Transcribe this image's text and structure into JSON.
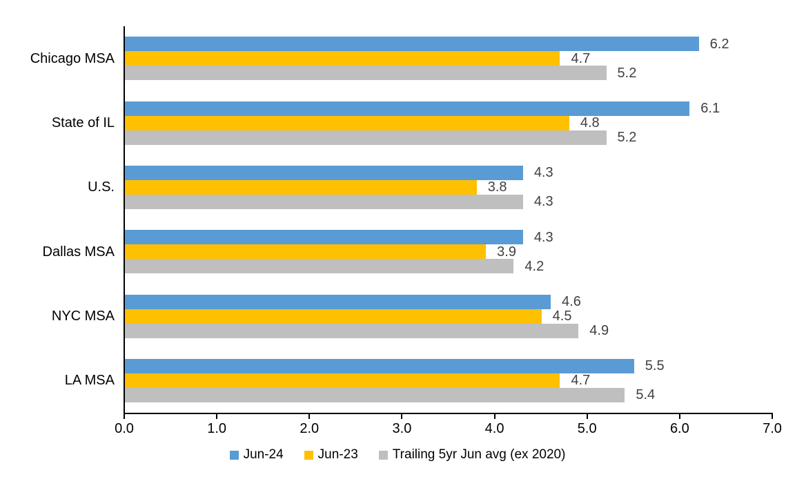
{
  "chart_data": {
    "type": "bar",
    "orientation": "horizontal",
    "title": "",
    "xlabel": "",
    "ylabel": "",
    "xlim": [
      0,
      7
    ],
    "x_ticks": [
      "0.0",
      "1.0",
      "2.0",
      "3.0",
      "4.0",
      "5.0",
      "6.0",
      "7.0"
    ],
    "grid": false,
    "legend_position": "bottom",
    "categories": [
      "Chicago MSA",
      "State of IL",
      "U.S.",
      "Dallas MSA",
      "NYC MSA",
      "LA MSA"
    ],
    "series": [
      {
        "name": "Jun-24",
        "color": "#5B9BD5",
        "values": [
          6.2,
          6.1,
          4.3,
          4.3,
          4.6,
          5.5
        ]
      },
      {
        "name": "Jun-23",
        "color": "#FFC000",
        "values": [
          4.7,
          4.8,
          3.8,
          3.9,
          4.5,
          4.7
        ]
      },
      {
        "name": "Trailing 5yr Jun avg (ex 2020)",
        "color": "#BFBFBF",
        "values": [
          5.2,
          5.2,
          4.3,
          4.2,
          4.9,
          5.4
        ]
      }
    ],
    "colors": {
      "axis": "#000000",
      "data_label": "#404040",
      "background": "#ffffff"
    }
  }
}
